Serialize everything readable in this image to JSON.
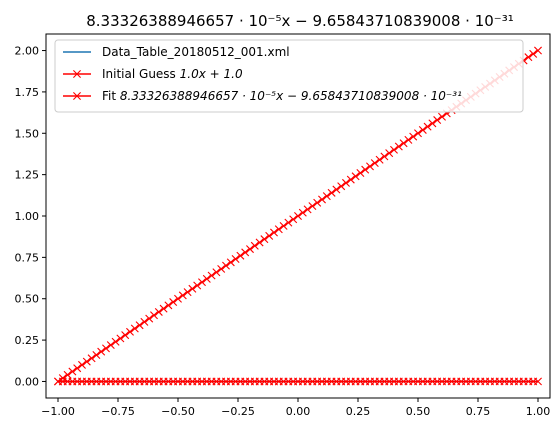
{
  "chart_data": {
    "type": "line",
    "title": "8.33326388946657 · 10⁻⁵x − 9.65843710839008 · 10⁻³¹",
    "xlabel": "",
    "ylabel": "",
    "xlim": [
      -1.05,
      1.05
    ],
    "ylim": [
      -0.1,
      2.1
    ],
    "xticks": [
      -1.0,
      -0.75,
      -0.5,
      -0.25,
      0.0,
      0.25,
      0.5,
      0.75,
      1.0
    ],
    "xtick_labels": [
      "−1.00",
      "−0.75",
      "−0.50",
      "−0.25",
      "0.00",
      "0.25",
      "0.50",
      "0.75",
      "1.00"
    ],
    "yticks": [
      0.0,
      0.25,
      0.5,
      0.75,
      1.0,
      1.25,
      1.5,
      1.75,
      2.0
    ],
    "ytick_labels": [
      "0.00",
      "0.25",
      "0.50",
      "0.75",
      "1.00",
      "1.25",
      "1.50",
      "1.75",
      "2.00"
    ],
    "grid": false,
    "legend_position": "top-left",
    "series": [
      {
        "name": "Data_Table_20180512_001.xml",
        "color": "#1f77b4",
        "marker": "none",
        "x_range": [
          -1.0,
          1.0
        ],
        "n_points": 101,
        "slope": 0.0,
        "intercept": 0.0
      },
      {
        "name": "Initial Guess 1.0x + 1.0",
        "legend_text": "Initial Guess ",
        "legend_math": "1.0x + 1.0",
        "color": "#ff0000",
        "marker": "x",
        "x_range": [
          -1.0,
          1.0
        ],
        "n_points": 101,
        "slope": 1.0,
        "intercept": 1.0
      },
      {
        "name": "Fit 8.33326388946657 · 10⁻⁵x − 9.65843710839008 · 10⁻³¹",
        "legend_text": "Fit ",
        "legend_math": "8.33326388946657 · 10⁻⁵x − 9.65843710839008 · 10⁻³¹",
        "color": "#ff0000",
        "marker": "x",
        "x_range": [
          -1.0,
          1.0
        ],
        "n_points": 101,
        "slope": 8.33326388946657e-05,
        "intercept": -9.65843710839008e-31
      }
    ]
  }
}
